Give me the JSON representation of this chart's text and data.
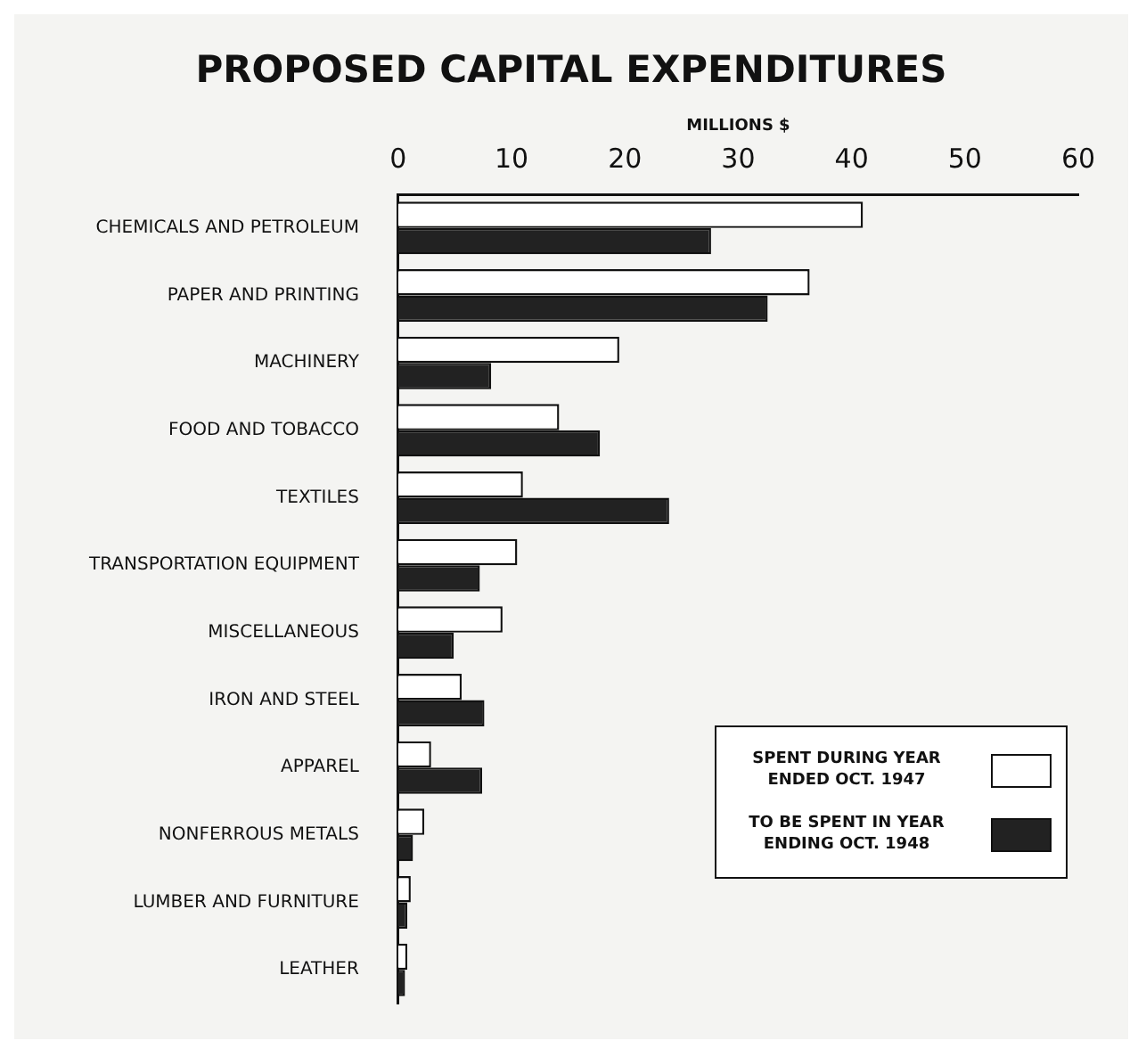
{
  "chart_data": {
    "type": "bar",
    "orientation": "horizontal",
    "title": "PROPOSED CAPITAL EXPENDITURES",
    "xlabel": "MILLIONS $",
    "categories": [
      "CHEMICALS AND PETROLEUM",
      "PAPER AND PRINTING",
      "MACHINERY",
      "FOOD AND TOBACCO",
      "TEXTILES",
      "TRANSPORTATION EQUIPMENT",
      "MISCELLANEOUS",
      "IRON AND STEEL",
      "APPAREL",
      "NONFERROUS METALS",
      "LUMBER AND FURNITURE",
      "LEATHER"
    ],
    "series": [
      {
        "name": "SPENT DURING YEAR\nENDED OCT. 1947",
        "color": "#ffffff",
        "values": [
          41,
          36.3,
          19.5,
          14.2,
          11,
          10.5,
          9.2,
          5.6,
          2.9,
          2.3,
          1.1,
          0.8
        ]
      },
      {
        "name": "TO BE SPENT IN YEAR\nENDING OCT. 1948",
        "color": "#222222",
        "values": [
          27.6,
          32.6,
          8.2,
          17.8,
          23.9,
          7.2,
          4.9,
          7.6,
          7.4,
          1.3,
          0.8,
          0.6
        ]
      }
    ],
    "xlim": [
      0,
      60
    ],
    "xticks": [
      0,
      10,
      20,
      30,
      40,
      50,
      60
    ],
    "grid": false,
    "legend": "bottom right"
  }
}
